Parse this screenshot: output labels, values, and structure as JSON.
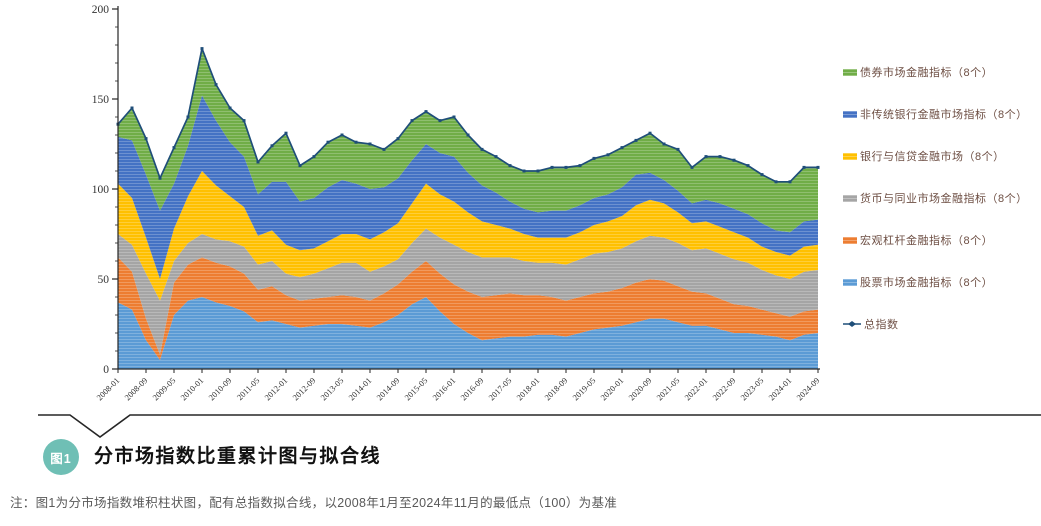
{
  "figure": {
    "badge": "图1",
    "badge_color": "#6FBFB5",
    "title": "分市场指数比重累计图与拟合线",
    "note": "注：图1为分市场指数堆积柱状图，配有总指数拟合线，以2008年1月至2024年11月的最低点（100）为基准"
  },
  "chart_data": {
    "type": "area",
    "stacked": true,
    "title": "",
    "xlabel": "",
    "ylabel": "",
    "ylim": [
      0,
      200
    ],
    "yticks": [
      0,
      50,
      100,
      150,
      200
    ],
    "y_minor_step": 10,
    "grid": false,
    "legend_position": "right",
    "legend_text_color": "#6E4F44",
    "axis_color": "#262626",
    "axis_text_color": "#333333",
    "x_tick_labels": [
      "2008-01",
      "2008-09",
      "2009-05",
      "2010-01",
      "2010-09",
      "2011-05",
      "2012-01",
      "2012-09",
      "2013-05",
      "2014-01",
      "2014-09",
      "2015-05",
      "2016-01",
      "2016-09",
      "2017-05",
      "2018-01",
      "2018-09",
      "2019-05",
      "2020-01",
      "2020-09",
      "2021-05",
      "2022-01",
      "2022-09",
      "2023-05",
      "2024-01",
      "2024-09"
    ],
    "x": [
      "2008-01",
      "2008-05",
      "2008-09",
      "2009-01",
      "2009-05",
      "2009-09",
      "2010-01",
      "2010-05",
      "2010-09",
      "2011-01",
      "2011-05",
      "2011-09",
      "2012-01",
      "2012-05",
      "2012-09",
      "2013-01",
      "2013-05",
      "2013-09",
      "2014-01",
      "2014-05",
      "2014-09",
      "2015-01",
      "2015-05",
      "2015-09",
      "2016-01",
      "2016-05",
      "2016-09",
      "2017-01",
      "2017-05",
      "2017-09",
      "2018-01",
      "2018-05",
      "2018-09",
      "2019-01",
      "2019-05",
      "2019-09",
      "2020-01",
      "2020-05",
      "2020-09",
      "2021-01",
      "2021-05",
      "2021-09",
      "2022-01",
      "2022-05",
      "2022-09",
      "2023-01",
      "2023-05",
      "2023-09",
      "2024-01",
      "2024-05",
      "2024-09"
    ],
    "series": [
      {
        "name": "股票市场金融指标（8个）",
        "color": "#5B9BD5",
        "values": [
          37,
          33,
          16,
          5,
          30,
          38,
          40,
          37,
          35,
          32,
          26,
          27,
          25,
          23,
          24,
          25,
          25,
          24,
          23,
          26,
          30,
          36,
          40,
          32,
          25,
          20,
          16,
          17,
          18,
          18,
          19,
          19,
          18,
          20,
          22,
          23,
          24,
          26,
          28,
          28,
          26,
          24,
          24,
          22,
          20,
          20,
          19,
          18,
          16,
          19,
          20
        ]
      },
      {
        "name": "宏观杠杆金融指标（8个）",
        "color": "#ED7D31",
        "values": [
          25,
          21,
          12,
          3,
          18,
          20,
          22,
          22,
          22,
          21,
          18,
          19,
          16,
          15,
          15,
          15,
          16,
          16,
          15,
          16,
          17,
          18,
          20,
          21,
          22,
          23,
          24,
          24,
          24,
          23,
          22,
          21,
          20,
          20,
          20,
          20,
          21,
          22,
          22,
          21,
          20,
          19,
          18,
          17,
          16,
          15,
          14,
          13,
          13,
          13,
          13
        ]
      },
      {
        "name": "货币与同业市场金融指标（8个）",
        "color": "#A5A5A5",
        "values": [
          13,
          15,
          25,
          30,
          12,
          12,
          13,
          13,
          14,
          15,
          14,
          14,
          12,
          13,
          14,
          16,
          18,
          19,
          16,
          15,
          14,
          16,
          18,
          20,
          22,
          22,
          22,
          21,
          20,
          19,
          18,
          19,
          20,
          21,
          22,
          22,
          22,
          23,
          24,
          24,
          24,
          23,
          25,
          25,
          25,
          24,
          22,
          21,
          21,
          22,
          22
        ]
      },
      {
        "name": "银行与信贷金融市场（8个）",
        "color": "#FFC000",
        "values": [
          28,
          26,
          20,
          12,
          18,
          26,
          35,
          30,
          25,
          22,
          16,
          17,
          16,
          15,
          14,
          15,
          16,
          16,
          18,
          19,
          20,
          22,
          25,
          24,
          24,
          22,
          20,
          18,
          16,
          15,
          14,
          14,
          15,
          15,
          16,
          17,
          18,
          20,
          20,
          19,
          17,
          15,
          15,
          15,
          15,
          14,
          13,
          13,
          13,
          14,
          14
        ]
      },
      {
        "name": "非传统银行金融市场指标（8个）",
        "color": "#4472C4",
        "values": [
          26,
          32,
          35,
          38,
          25,
          28,
          42,
          36,
          30,
          28,
          23,
          27,
          35,
          27,
          28,
          30,
          30,
          28,
          28,
          25,
          25,
          24,
          22,
          23,
          25,
          22,
          20,
          18,
          15,
          14,
          14,
          15,
          15,
          15,
          15,
          15,
          16,
          17,
          15,
          13,
          12,
          11,
          12,
          13,
          13,
          13,
          13,
          12,
          13,
          14,
          14
        ]
      },
      {
        "name": "债券市场金融指标（8个）",
        "color": "#70AD47",
        "values": [
          7,
          18,
          20,
          18,
          20,
          16,
          26,
          20,
          19,
          20,
          18,
          20,
          27,
          20,
          23,
          25,
          25,
          23,
          25,
          21,
          22,
          22,
          18,
          18,
          22,
          21,
          20,
          20,
          20,
          21,
          23,
          24,
          24,
          22,
          22,
          22,
          22,
          19,
          22,
          20,
          23,
          20,
          24,
          26,
          27,
          27,
          27,
          27,
          28,
          30,
          29
        ]
      }
    ],
    "total_line": {
      "name": "总指数",
      "color": "#1F4E79"
    }
  }
}
